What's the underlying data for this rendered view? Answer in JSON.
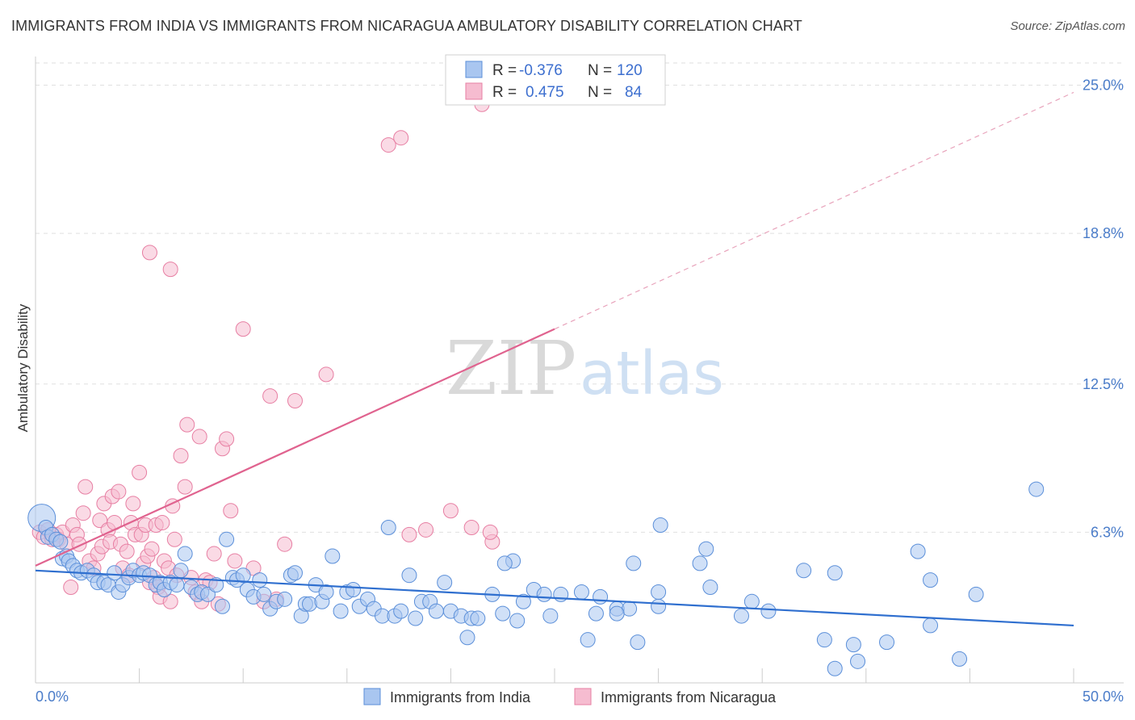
{
  "title": "IMMIGRANTS FROM INDIA VS IMMIGRANTS FROM NICARAGUA AMBULATORY DISABILITY CORRELATION CHART",
  "source": "Source: ZipAtlas.com",
  "watermark": {
    "zip": "ZIP",
    "atlas": "atlas"
  },
  "colors": {
    "india_fill": "#a9c6f0",
    "india_stroke": "#5b8fd9",
    "india_line": "#2f6fcf",
    "nicaragua_fill": "#f6bcd0",
    "nicaragua_stroke": "#e77fa3",
    "nicaragua_line": "#e0638f",
    "tick_blue": "#4a7cc9"
  },
  "legend": {
    "india": {
      "r_label": "R =",
      "r_value": "-0.376",
      "n_label": "N =",
      "n_value": "120"
    },
    "nicaragua": {
      "r_label": "R =",
      "r_value": "0.475",
      "n_label": "N =",
      "n_value": "84"
    }
  },
  "chart_data": {
    "type": "scatter",
    "ylabel": "Ambulatory Disability",
    "xlim": [
      0,
      50
    ],
    "ylim": [
      0,
      26.2
    ],
    "x_tick_labels": [
      "0.0%",
      "50.0%"
    ],
    "y_ticks": [
      6.3,
      12.5,
      18.8,
      25.0
    ],
    "y_tick_labels": [
      "6.3%",
      "12.5%",
      "18.8%",
      "25.0%"
    ],
    "grid": "horizontal dashed",
    "legend_position": "top-center",
    "series": [
      {
        "name": "Immigrants from India",
        "trend": {
          "x0": 0,
          "y0": 4.7,
          "x1": 50,
          "y1": 2.4
        },
        "points": [
          [
            0.3,
            6.9
          ],
          [
            0.5,
            6.5
          ],
          [
            0.6,
            6.1
          ],
          [
            0.8,
            6.2
          ],
          [
            1.0,
            6.0
          ],
          [
            1.2,
            5.9
          ],
          [
            1.3,
            5.2
          ],
          [
            1.5,
            5.3
          ],
          [
            1.6,
            5.1
          ],
          [
            1.8,
            4.9
          ],
          [
            2.0,
            4.7
          ],
          [
            2.2,
            4.6
          ],
          [
            2.5,
            4.7
          ],
          [
            2.8,
            4.5
          ],
          [
            3.0,
            4.2
          ],
          [
            3.3,
            4.2
          ],
          [
            3.5,
            4.1
          ],
          [
            3.8,
            4.6
          ],
          [
            4.0,
            3.8
          ],
          [
            4.2,
            4.1
          ],
          [
            4.5,
            4.4
          ],
          [
            4.7,
            4.7
          ],
          [
            5.0,
            4.5
          ],
          [
            5.2,
            4.6
          ],
          [
            5.5,
            4.5
          ],
          [
            5.8,
            4.1
          ],
          [
            6.0,
            4.2
          ],
          [
            6.2,
            3.9
          ],
          [
            6.5,
            4.2
          ],
          [
            6.8,
            4.1
          ],
          [
            7.0,
            4.7
          ],
          [
            7.2,
            5.4
          ],
          [
            7.5,
            4.0
          ],
          [
            7.8,
            3.7
          ],
          [
            8.0,
            3.8
          ],
          [
            8.3,
            3.7
          ],
          [
            8.7,
            4.1
          ],
          [
            9.0,
            3.2
          ],
          [
            9.2,
            6.0
          ],
          [
            9.5,
            4.4
          ],
          [
            9.7,
            4.3
          ],
          [
            10.0,
            4.5
          ],
          [
            10.2,
            3.9
          ],
          [
            10.5,
            3.6
          ],
          [
            10.8,
            4.3
          ],
          [
            11.0,
            3.7
          ],
          [
            11.3,
            3.1
          ],
          [
            11.6,
            3.4
          ],
          [
            12.0,
            3.5
          ],
          [
            12.3,
            4.5
          ],
          [
            12.5,
            4.6
          ],
          [
            12.8,
            2.8
          ],
          [
            13.0,
            3.3
          ],
          [
            13.2,
            3.3
          ],
          [
            13.5,
            4.1
          ],
          [
            13.8,
            3.4
          ],
          [
            14.0,
            3.8
          ],
          [
            14.3,
            5.3
          ],
          [
            14.7,
            3.0
          ],
          [
            15.0,
            3.8
          ],
          [
            15.3,
            3.9
          ],
          [
            15.6,
            3.2
          ],
          [
            16.0,
            3.5
          ],
          [
            16.3,
            3.1
          ],
          [
            16.7,
            2.8
          ],
          [
            17.0,
            6.5
          ],
          [
            17.3,
            2.8
          ],
          [
            17.6,
            3.0
          ],
          [
            18.0,
            4.5
          ],
          [
            18.3,
            2.7
          ],
          [
            18.6,
            3.4
          ],
          [
            19.0,
            3.4
          ],
          [
            19.3,
            3.0
          ],
          [
            19.7,
            4.2
          ],
          [
            20.0,
            3.0
          ],
          [
            20.5,
            2.8
          ],
          [
            20.8,
            1.9
          ],
          [
            21.0,
            2.7
          ],
          [
            21.3,
            2.7
          ],
          [
            22.0,
            3.7
          ],
          [
            22.5,
            2.9
          ],
          [
            23.0,
            5.1
          ],
          [
            23.2,
            2.6
          ],
          [
            23.5,
            3.4
          ],
          [
            24.0,
            3.9
          ],
          [
            24.5,
            3.7
          ],
          [
            24.8,
            2.8
          ],
          [
            25.3,
            3.7
          ],
          [
            26.3,
            3.8
          ],
          [
            26.6,
            1.8
          ],
          [
            27.0,
            2.9
          ],
          [
            27.2,
            3.6
          ],
          [
            28.0,
            3.1
          ],
          [
            28.6,
            3.1
          ],
          [
            28.8,
            5.0
          ],
          [
            29.0,
            1.7
          ],
          [
            30.0,
            3.2
          ],
          [
            30.0,
            3.8
          ],
          [
            32.0,
            5.0
          ],
          [
            32.5,
            4.0
          ],
          [
            34.0,
            2.8
          ],
          [
            34.5,
            3.4
          ],
          [
            35.3,
            3.0
          ],
          [
            37.0,
            4.7
          ],
          [
            38.0,
            1.8
          ],
          [
            38.5,
            4.6
          ],
          [
            38.5,
            0.6
          ],
          [
            39.6,
            0.9
          ],
          [
            41.0,
            1.7
          ],
          [
            42.5,
            5.5
          ],
          [
            43.1,
            2.4
          ],
          [
            43.1,
            4.3
          ],
          [
            44.5,
            1.0
          ],
          [
            45.3,
            3.7
          ],
          [
            39.4,
            1.6
          ],
          [
            22.6,
            5.0
          ],
          [
            28.0,
            2.9
          ],
          [
            30.1,
            6.6
          ],
          [
            32.3,
            5.6
          ],
          [
            48.2,
            8.1
          ]
        ]
      },
      {
        "name": "Immigrants from Nicaragua",
        "trend": {
          "x0": 0,
          "y0": 4.9,
          "x1": 25,
          "y1": 14.8,
          "x_ext": 50,
          "y_ext": 24.7
        },
        "points": [
          [
            0.2,
            6.3
          ],
          [
            0.4,
            6.1
          ],
          [
            0.6,
            6.4
          ],
          [
            0.8,
            6.0
          ],
          [
            1.0,
            6.2
          ],
          [
            1.1,
            6.0
          ],
          [
            1.3,
            6.3
          ],
          [
            1.5,
            5.8
          ],
          [
            1.7,
            4.0
          ],
          [
            1.8,
            6.6
          ],
          [
            2.0,
            6.2
          ],
          [
            2.1,
            5.8
          ],
          [
            2.3,
            7.1
          ],
          [
            2.4,
            8.2
          ],
          [
            2.6,
            5.1
          ],
          [
            2.8,
            4.8
          ],
          [
            3.0,
            5.4
          ],
          [
            3.1,
            6.8
          ],
          [
            3.2,
            5.7
          ],
          [
            3.3,
            7.5
          ],
          [
            3.5,
            6.4
          ],
          [
            3.6,
            5.9
          ],
          [
            3.7,
            7.8
          ],
          [
            3.8,
            6.7
          ],
          [
            4.0,
            8.0
          ],
          [
            4.1,
            5.8
          ],
          [
            4.2,
            4.8
          ],
          [
            4.4,
            5.5
          ],
          [
            4.5,
            4.5
          ],
          [
            4.6,
            6.7
          ],
          [
            4.7,
            7.5
          ],
          [
            4.8,
            6.2
          ],
          [
            5.0,
            8.8
          ],
          [
            5.1,
            6.2
          ],
          [
            5.2,
            5.0
          ],
          [
            5.3,
            6.6
          ],
          [
            5.4,
            5.3
          ],
          [
            5.5,
            4.2
          ],
          [
            5.6,
            5.6
          ],
          [
            5.7,
            4.4
          ],
          [
            5.8,
            6.6
          ],
          [
            5.9,
            4.0
          ],
          [
            6.0,
            3.6
          ],
          [
            6.1,
            6.7
          ],
          [
            6.2,
            5.1
          ],
          [
            6.4,
            4.8
          ],
          [
            6.5,
            3.4
          ],
          [
            6.6,
            7.4
          ],
          [
            6.7,
            6.0
          ],
          [
            6.8,
            4.5
          ],
          [
            7.0,
            9.5
          ],
          [
            7.2,
            8.2
          ],
          [
            7.3,
            10.8
          ],
          [
            7.5,
            4.4
          ],
          [
            7.7,
            3.8
          ],
          [
            7.9,
            10.3
          ],
          [
            8.0,
            3.4
          ],
          [
            8.2,
            4.3
          ],
          [
            8.4,
            4.2
          ],
          [
            8.6,
            5.4
          ],
          [
            8.8,
            3.3
          ],
          [
            9.0,
            9.8
          ],
          [
            9.2,
            10.2
          ],
          [
            9.4,
            7.2
          ],
          [
            9.6,
            5.1
          ],
          [
            10.0,
            14.8
          ],
          [
            10.5,
            4.8
          ],
          [
            11.0,
            3.4
          ],
          [
            11.3,
            12.0
          ],
          [
            11.6,
            3.5
          ],
          [
            12.0,
            5.8
          ],
          [
            12.5,
            11.8
          ],
          [
            14.0,
            12.9
          ],
          [
            17.0,
            22.5
          ],
          [
            18.0,
            6.2
          ],
          [
            18.8,
            6.4
          ],
          [
            20.0,
            7.2
          ],
          [
            21.0,
            6.5
          ],
          [
            22.0,
            5.9
          ],
          [
            21.9,
            6.3
          ],
          [
            5.5,
            18.0
          ],
          [
            6.5,
            17.3
          ],
          [
            17.6,
            22.8
          ],
          [
            21.5,
            24.2
          ]
        ]
      }
    ]
  },
  "bottom_legend": {
    "india_label": "Immigrants from India",
    "nicaragua_label": "Immigrants from Nicaragua"
  }
}
